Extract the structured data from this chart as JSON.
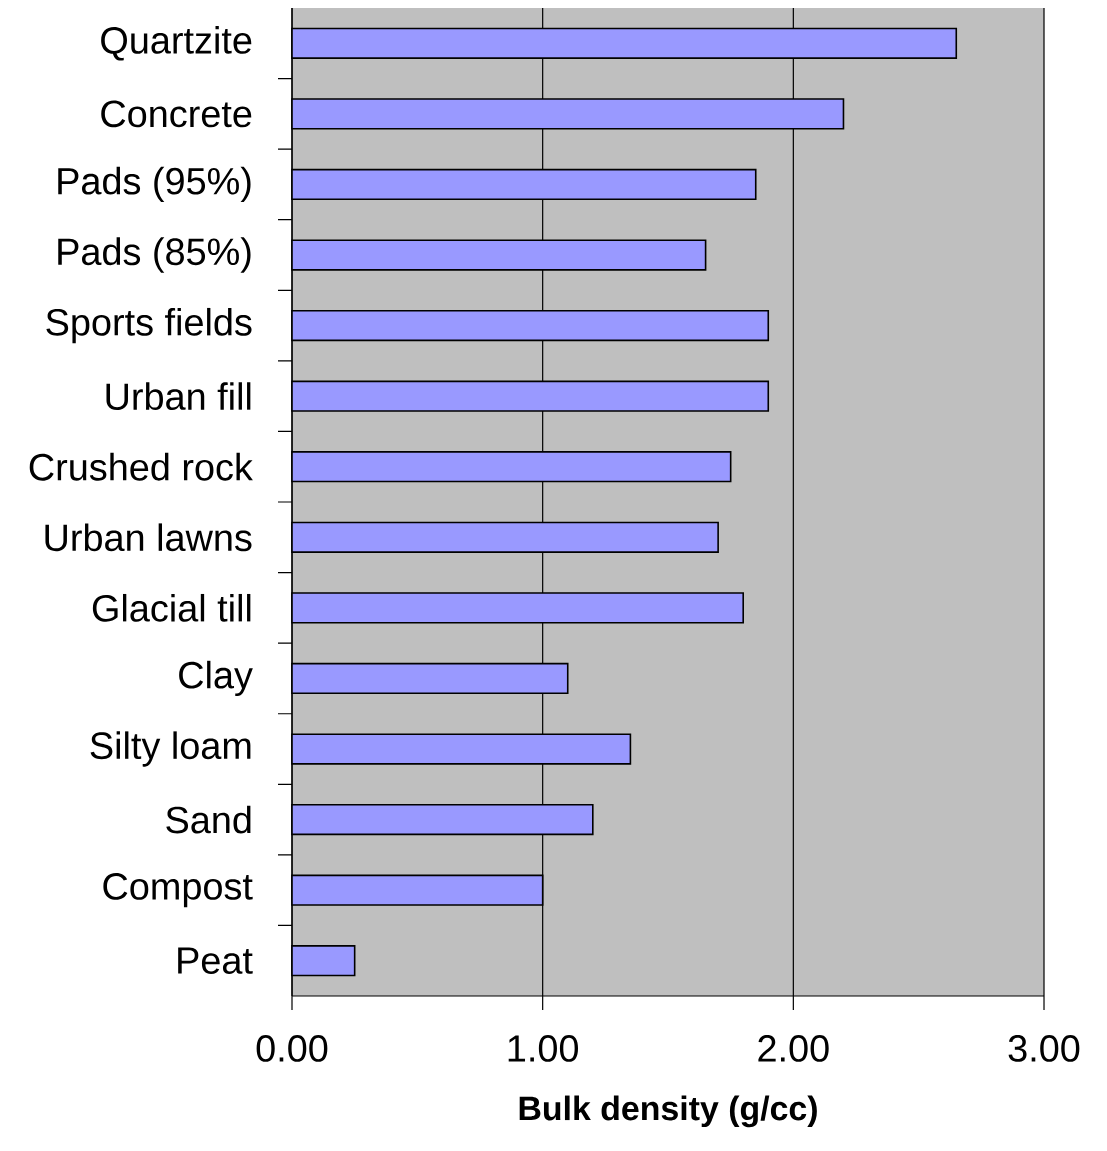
{
  "chart_data": {
    "type": "bar",
    "orientation": "horizontal",
    "xlabel": "Bulk density (g/cc)",
    "categories": [
      "Quartzite",
      "Concrete",
      "Pads (95%)",
      "Pads (85%)",
      "Sports fields",
      "Urban fill",
      "Crushed rock",
      "Urban lawns",
      "Glacial till",
      "Clay",
      "Silty loam",
      "Sand",
      "Compost",
      "Peat"
    ],
    "values": [
      2.65,
      2.2,
      1.85,
      1.65,
      1.9,
      1.9,
      1.75,
      1.7,
      1.8,
      1.1,
      1.35,
      1.2,
      1.0,
      0.25
    ],
    "color": "#9999ff",
    "xlim": [
      0,
      3
    ],
    "xticks": [
      {
        "value": 0,
        "label": "0.00"
      },
      {
        "value": 1,
        "label": "1.00"
      },
      {
        "value": 2,
        "label": "2.00"
      },
      {
        "value": 3,
        "label": "3.00"
      }
    ],
    "grid": "x"
  }
}
